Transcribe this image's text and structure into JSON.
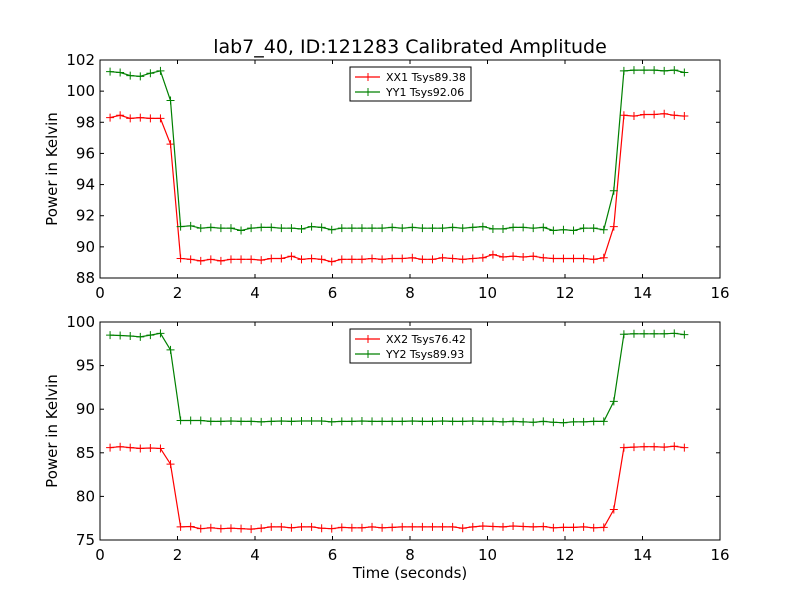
{
  "figure_title": "lab7_40, ID:121283 Calibrated Amplitude",
  "chart_data": [
    {
      "type": "line",
      "title": "lab7_40, ID:121283 Calibrated Amplitude",
      "xlabel": "",
      "ylabel": "Power in Kelvin",
      "xlim": [
        0,
        16
      ],
      "ylim": [
        88,
        102
      ],
      "xticks": [
        0,
        2,
        4,
        6,
        8,
        10,
        12,
        14,
        16
      ],
      "yticks": [
        88,
        90,
        92,
        94,
        96,
        98,
        100,
        102
      ],
      "legend_position": "upper center",
      "x": [
        0.26,
        0.52,
        0.78,
        1.04,
        1.3,
        1.56,
        1.82,
        2.08,
        2.34,
        2.6,
        2.86,
        3.12,
        3.38,
        3.64,
        3.9,
        4.16,
        4.42,
        4.68,
        4.94,
        5.2,
        5.46,
        5.72,
        5.98,
        6.24,
        6.5,
        6.76,
        7.02,
        7.28,
        7.54,
        7.8,
        8.06,
        8.32,
        8.58,
        8.84,
        9.1,
        9.36,
        9.62,
        9.88,
        10.14,
        10.4,
        10.66,
        10.92,
        11.18,
        11.44,
        11.7,
        11.96,
        12.22,
        12.48,
        12.74,
        13.0,
        13.26,
        13.52,
        13.78,
        14.04,
        14.3,
        14.56,
        14.82,
        15.08
      ],
      "series": [
        {
          "name": "XX1 Tsys89.38",
          "color": "#ff0000",
          "values": [
            98.3,
            98.45,
            98.25,
            98.3,
            98.25,
            98.25,
            96.6,
            89.25,
            89.2,
            89.1,
            89.2,
            89.1,
            89.2,
            89.2,
            89.2,
            89.15,
            89.25,
            89.25,
            89.4,
            89.2,
            89.25,
            89.2,
            89.05,
            89.2,
            89.2,
            89.2,
            89.25,
            89.2,
            89.25,
            89.25,
            89.3,
            89.2,
            89.2,
            89.3,
            89.25,
            89.2,
            89.25,
            89.3,
            89.5,
            89.35,
            89.4,
            89.35,
            89.4,
            89.3,
            89.25,
            89.25,
            89.25,
            89.25,
            89.2,
            89.3,
            91.3,
            98.45,
            98.4,
            98.5,
            98.5,
            98.55,
            98.45,
            98.4
          ]
        },
        {
          "name": "YY1 Tsys92.06",
          "color": "#008000",
          "values": [
            101.25,
            101.2,
            101.0,
            100.95,
            101.15,
            101.3,
            99.4,
            91.3,
            91.35,
            91.2,
            91.25,
            91.2,
            91.2,
            91.05,
            91.2,
            91.25,
            91.25,
            91.2,
            91.2,
            91.15,
            91.3,
            91.25,
            91.1,
            91.2,
            91.2,
            91.2,
            91.2,
            91.2,
            91.25,
            91.2,
            91.25,
            91.2,
            91.2,
            91.2,
            91.25,
            91.2,
            91.25,
            91.3,
            91.15,
            91.15,
            91.25,
            91.25,
            91.2,
            91.25,
            91.05,
            91.1,
            91.05,
            91.2,
            91.2,
            91.1,
            93.6,
            101.3,
            101.35,
            101.35,
            101.35,
            101.3,
            101.35,
            101.2
          ]
        }
      ]
    },
    {
      "type": "line",
      "title": "",
      "xlabel": "Time (seconds)",
      "ylabel": "Power in Kelvin",
      "xlim": [
        0,
        16
      ],
      "ylim": [
        75,
        100
      ],
      "xticks": [
        0,
        2,
        4,
        6,
        8,
        10,
        12,
        14,
        16
      ],
      "yticks": [
        75,
        80,
        85,
        90,
        95,
        100
      ],
      "legend_position": "upper center",
      "x": [
        0.26,
        0.52,
        0.78,
        1.04,
        1.3,
        1.56,
        1.82,
        2.08,
        2.34,
        2.6,
        2.86,
        3.12,
        3.38,
        3.64,
        3.9,
        4.16,
        4.42,
        4.68,
        4.94,
        5.2,
        5.46,
        5.72,
        5.98,
        6.24,
        6.5,
        6.76,
        7.02,
        7.28,
        7.54,
        7.8,
        8.06,
        8.32,
        8.58,
        8.84,
        9.1,
        9.36,
        9.62,
        9.88,
        10.14,
        10.4,
        10.66,
        10.92,
        11.18,
        11.44,
        11.7,
        11.96,
        12.22,
        12.48,
        12.74,
        13.0,
        13.26,
        13.52,
        13.78,
        14.04,
        14.3,
        14.56,
        14.82,
        15.08
      ],
      "series": [
        {
          "name": "XX2 Tsys76.42",
          "color": "#ff0000",
          "values": [
            85.6,
            85.7,
            85.6,
            85.5,
            85.55,
            85.5,
            83.7,
            76.5,
            76.55,
            76.3,
            76.4,
            76.3,
            76.35,
            76.3,
            76.25,
            76.35,
            76.5,
            76.5,
            76.4,
            76.5,
            76.5,
            76.35,
            76.3,
            76.45,
            76.4,
            76.4,
            76.5,
            76.4,
            76.45,
            76.5,
            76.5,
            76.5,
            76.5,
            76.5,
            76.5,
            76.35,
            76.5,
            76.6,
            76.55,
            76.5,
            76.6,
            76.55,
            76.5,
            76.55,
            76.4,
            76.45,
            76.45,
            76.5,
            76.4,
            76.45,
            78.5,
            85.6,
            85.65,
            85.7,
            85.7,
            85.65,
            85.75,
            85.6
          ]
        },
        {
          "name": "YY2 Tsys89.93",
          "color": "#008000",
          "values": [
            98.5,
            98.45,
            98.4,
            98.3,
            98.5,
            98.7,
            96.8,
            88.7,
            88.7,
            88.7,
            88.6,
            88.6,
            88.65,
            88.6,
            88.6,
            88.55,
            88.6,
            88.65,
            88.6,
            88.65,
            88.65,
            88.65,
            88.55,
            88.6,
            88.6,
            88.65,
            88.6,
            88.6,
            88.6,
            88.6,
            88.65,
            88.6,
            88.6,
            88.65,
            88.6,
            88.6,
            88.65,
            88.6,
            88.6,
            88.55,
            88.6,
            88.55,
            88.5,
            88.6,
            88.5,
            88.45,
            88.55,
            88.55,
            88.6,
            88.6,
            90.9,
            98.6,
            98.65,
            98.65,
            98.65,
            98.65,
            98.7,
            98.55
          ]
        }
      ]
    }
  ]
}
